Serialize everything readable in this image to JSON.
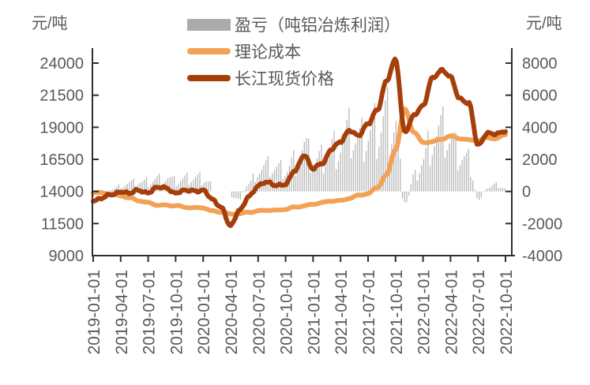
{
  "colors": {
    "background": "#FFFFFF",
    "bars": "#B7B7B7",
    "cost_line": "#F2A155",
    "price_line": "#A63E0C",
    "text": "#595959",
    "axis": "#2E2E2E"
  },
  "legend": {
    "items": [
      {
        "label": "盈亏（吨铝冶炼利润）",
        "swatch": "bar",
        "color": "#ABABAB"
      },
      {
        "label": "理论成本",
        "swatch": "line",
        "color": "#F2A155"
      },
      {
        "label": "长江现货价格",
        "swatch": "line",
        "color": "#A63E0C"
      }
    ]
  },
  "chart_data": {
    "type": "bar",
    "subtype": "combo-bar-and-two-lines",
    "title": "",
    "left_axis": {
      "title": "元/吨",
      "ticks": [
        24000,
        21500,
        19000,
        16500,
        14000,
        11500,
        9000
      ],
      "range": [
        9000,
        24000
      ]
    },
    "right_axis": {
      "title": "元/吨",
      "ticks": [
        8000,
        6000,
        4000,
        2000,
        0,
        -2000,
        -4000
      ],
      "range": [
        -4000,
        8000
      ]
    },
    "x_tick_labels": [
      "2019-01-01",
      "2019-04-01",
      "2019-07-01",
      "2019-10-01",
      "2020-01-01",
      "2020-04-01",
      "2020-07-01",
      "2020-10-01",
      "2021-01-01",
      "2021-04-01",
      "2021-07-01",
      "2021-10-01",
      "2022-01-01",
      "2022-04-01",
      "2022-07-01",
      "2022-10-01"
    ],
    "months_start": "2019-01",
    "months_count": 46,
    "grid": false,
    "legend_position": "top-center",
    "series": [
      {
        "name": "盈亏（吨铝冶炼利润）",
        "kind": "bar",
        "axis": "right",
        "bar_resolution": "weekly",
        "monthly_values": [
          -450,
          -350,
          100,
          500,
          800,
          900,
          1000,
          1300,
          1400,
          1050,
          1300,
          1400,
          1350,
          800,
          null,
          -800,
          -600,
          600,
          1900,
          2150,
          2050,
          1900,
          2800,
          4000,
          2700,
          3100,
          4100,
          4500,
          5300,
          4700,
          5400,
          6100,
          7300,
          6900,
          -1700,
          1300,
          2800,
          5000,
          5300,
          4600,
          3200,
          2800,
          -800,
          300,
          600,
          300
        ]
      },
      {
        "name": "理论成本",
        "kind": "line",
        "axis": "left",
        "monthly_values": [
          13900,
          13850,
          13800,
          13700,
          13500,
          13250,
          13100,
          12950,
          12950,
          12900,
          12750,
          12700,
          12750,
          12500,
          12400,
          12200,
          12250,
          12400,
          12500,
          12550,
          12500,
          12600,
          12800,
          12900,
          13000,
          13100,
          13250,
          13300,
          13500,
          13700,
          13800,
          14300,
          15300,
          17300,
          20400,
          18600,
          17800,
          17900,
          18100,
          18300,
          18100,
          18000,
          18000,
          18200,
          18100,
          18400
        ]
      },
      {
        "name": "长江现货价格",
        "kind": "line",
        "axis": "left",
        "monthly_values": [
          13350,
          13450,
          13750,
          14050,
          13800,
          14100,
          13950,
          14250,
          14300,
          13900,
          14000,
          14100,
          14100,
          13300,
          12800,
          11300,
          12500,
          13700,
          14400,
          14700,
          14550,
          14500,
          15600,
          16900,
          15700,
          16200,
          17350,
          17800,
          18800,
          18400,
          19200,
          20400,
          22600,
          24200,
          18700,
          19900,
          20600,
          22900,
          23400,
          22900,
          21300,
          20800,
          17600,
          18600,
          18400,
          18700
        ]
      }
    ]
  }
}
